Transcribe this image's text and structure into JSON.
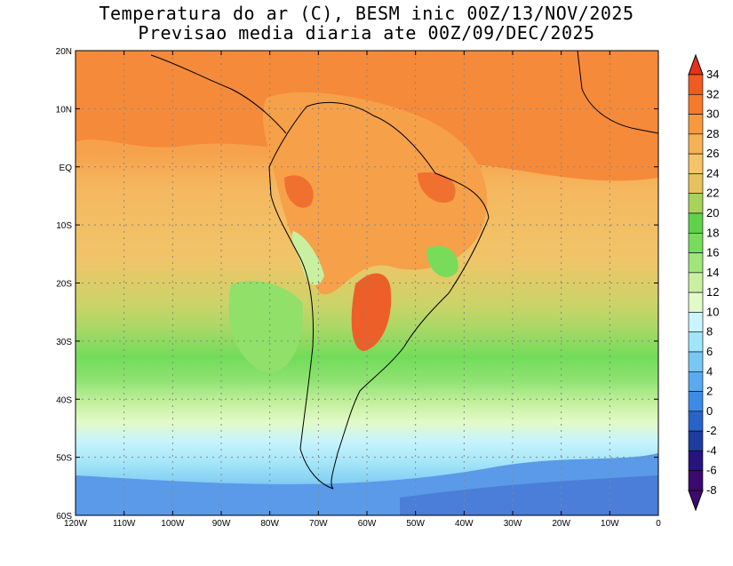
{
  "title_line1": "Temperatura do ar (C), BESM inic 00Z/13/NOV/2025",
  "title_line2": "Previsao media diaria ate 00Z/09/DEC/2025",
  "lat_labels": [
    "20N",
    "10N",
    "EQ",
    "10S",
    "20S",
    "30S",
    "40S",
    "50S",
    "60S"
  ],
  "lon_labels": [
    "120W",
    "110W",
    "100W",
    "90W",
    "80W",
    "70W",
    "60W",
    "50W",
    "40W",
    "30W",
    "20W",
    "10W",
    "0"
  ],
  "colorbar": {
    "labels": [
      "34",
      "32",
      "30",
      "28",
      "26",
      "24",
      "22",
      "20",
      "18",
      "16",
      "14",
      "12",
      "10",
      "8",
      "6",
      "4",
      "2",
      "0",
      "-2",
      "-4",
      "-6",
      "-8"
    ],
    "colors": [
      "#e8301e",
      "#f05a23",
      "#f5792b",
      "#f59a3e",
      "#f5b255",
      "#f5c46a",
      "#e6c25e",
      "#a8d25a",
      "#5fd24a",
      "#78dc5a",
      "#a0e67a",
      "#c8f0a0",
      "#e2fac8",
      "#c8f5ff",
      "#a0e6fa",
      "#78c8f5",
      "#5aaaf0",
      "#3c8ce6",
      "#2864c8",
      "#1e3ca0",
      "#28147d",
      "#3c0a6e"
    ]
  },
  "chart_data": {
    "type": "heatmap",
    "title": "Temperatura do ar (C), BESM inic 00Z/13/NOV/2025",
    "subtitle": "Previsao media diaria ate 00Z/09/DEC/2025",
    "variable": "Temperatura do ar (C)",
    "xlim": [
      -120,
      0
    ],
    "ylim": [
      -60,
      20
    ],
    "xticks": [
      -120,
      -110,
      -100,
      -90,
      -80,
      -70,
      -60,
      -50,
      -40,
      -30,
      -20,
      -10,
      0
    ],
    "yticks": [
      20,
      10,
      0,
      -10,
      -20,
      -30,
      -40,
      -50,
      -60
    ],
    "colorbar_levels": [
      34,
      32,
      30,
      28,
      26,
      24,
      22,
      20,
      18,
      16,
      14,
      12,
      10,
      8,
      6,
      4,
      2,
      0,
      -2,
      -4,
      -6,
      -8
    ],
    "grid": true
  }
}
